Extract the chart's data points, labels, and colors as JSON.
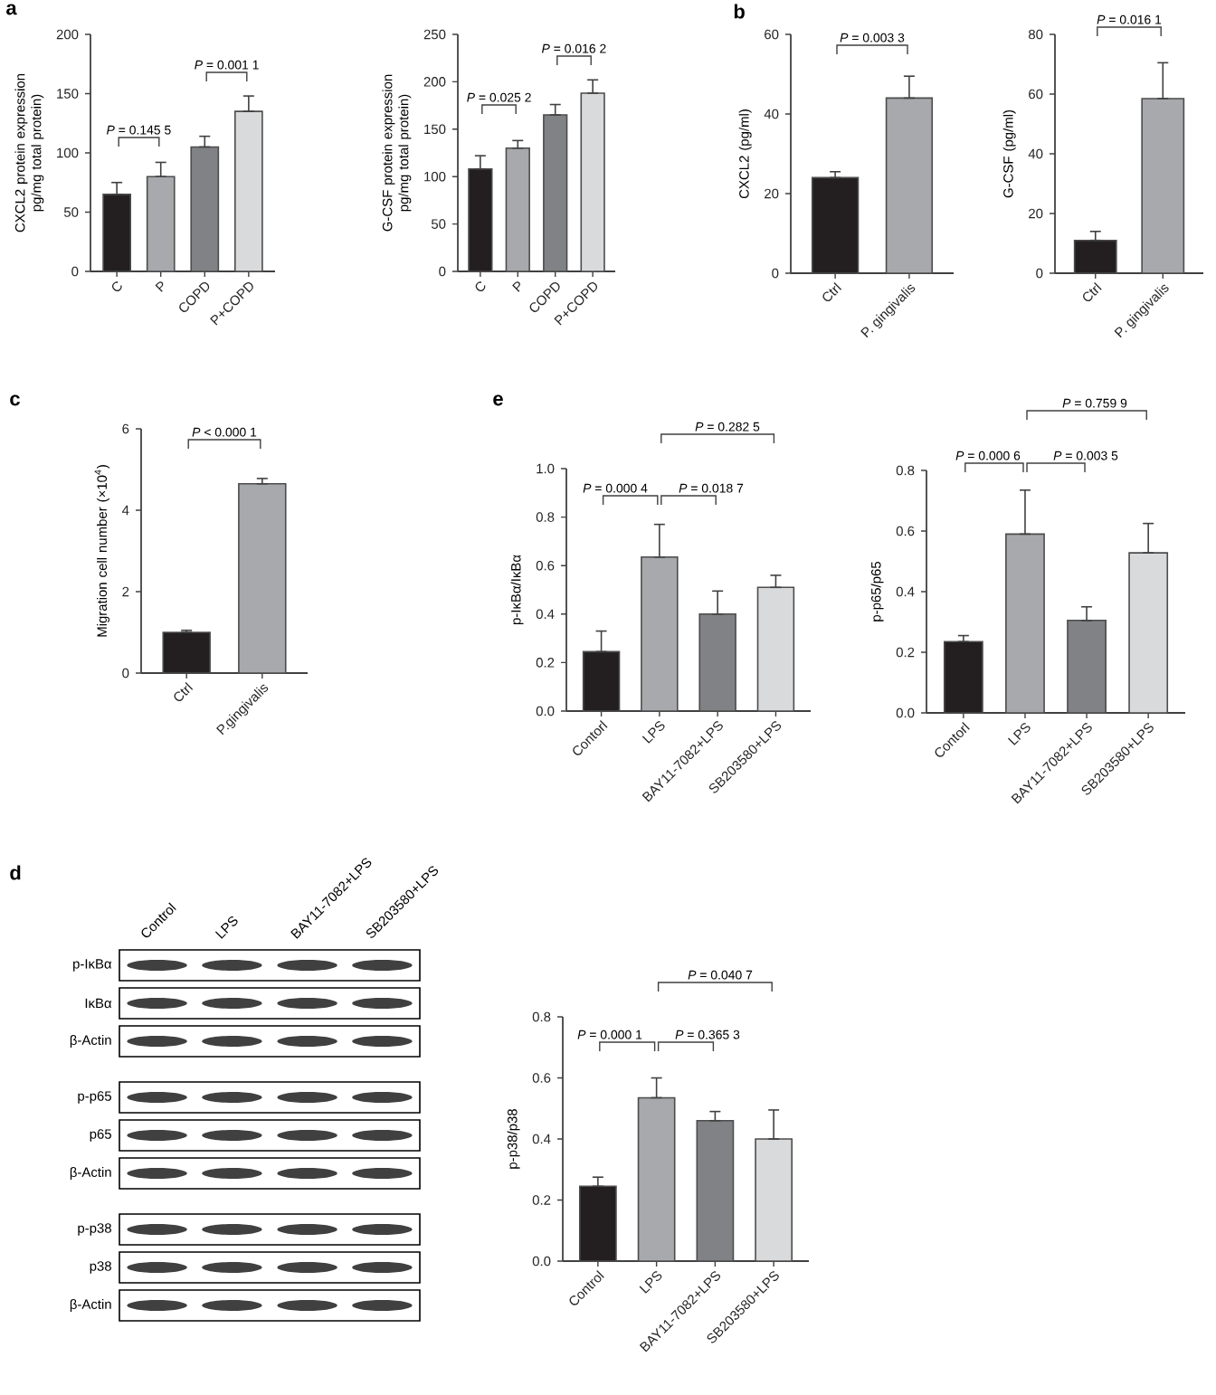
{
  "chart_data": [
    {
      "type": "bar",
      "title": "a",
      "categories": [
        "C",
        "P",
        "COPD",
        "P+COPD"
      ],
      "values": [
        65,
        80,
        105,
        135
      ],
      "errors": [
        [
          65,
          75
        ],
        [
          80,
          92
        ],
        [
          105,
          114
        ],
        [
          135,
          148
        ]
      ],
      "colors": [
        "#231f20",
        "#a7a9ac",
        "#808285",
        "#d9dadb"
      ],
      "ylabel": "CXCL2 protein expression pg/mg total protein)",
      "ylim": [
        0,
        200
      ],
      "yticks": [
        0,
        50,
        100,
        150,
        200
      ],
      "annotations": [
        "*P* = 0.145 5",
        "*P* = 0.001 1"
      ]
    },
    {
      "type": "bar",
      "categories": [
        "C",
        "P",
        "COPD",
        "P+COPD"
      ],
      "values": [
        108,
        130,
        165,
        188
      ],
      "errors": [
        [
          108,
          122
        ],
        [
          130,
          138
        ],
        [
          165,
          176
        ],
        [
          188,
          202
        ]
      ],
      "colors": [
        "#231f20",
        "#a7a9ac",
        "#808285",
        "#d9dadb"
      ],
      "ylabel": "G-CSF protein expression pg/mg total protein)",
      "ylim": [
        0,
        250
      ],
      "yticks": [
        0,
        50,
        100,
        150,
        200,
        250
      ],
      "annotations": [
        "*P* = 0.025 2",
        "*P* = 0.016 2"
      ]
    },
    {
      "type": "bar",
      "title": "b",
      "categories": [
        "Ctrl",
        "P. gingivalis"
      ],
      "values": [
        24,
        44
      ],
      "errors": [
        [
          24,
          25.5
        ],
        [
          44,
          49.5
        ]
      ],
      "colors": [
        "#231f20",
        "#a7a9ac"
      ],
      "ylabel": "CXCL2 (pg/ml)",
      "ylim": [
        0,
        60
      ],
      "yticks": [
        0,
        20,
        40,
        60
      ],
      "annotations": [
        "*P* = 0.003 3"
      ]
    },
    {
      "type": "bar",
      "categories": [
        "Ctrl",
        "P. gingivalis"
      ],
      "values": [
        11,
        58.5
      ],
      "errors": [
        [
          11,
          14
        ],
        [
          58.5,
          70.5
        ]
      ],
      "colors": [
        "#231f20",
        "#a7a9ac"
      ],
      "ylabel": "G-CSF (pg/ml)",
      "ylim": [
        0,
        80
      ],
      "yticks": [
        0,
        20,
        40,
        60,
        80
      ],
      "annotations": [
        "*P* = 0.016 1"
      ]
    },
    {
      "type": "bar",
      "title": "c",
      "categories": [
        "Ctrl",
        "P.gingivalis"
      ],
      "values": [
        1.0,
        4.65
      ],
      "errors": [
        [
          1.0,
          1.05
        ],
        [
          4.65,
          4.78
        ]
      ],
      "colors": [
        "#231f20",
        "#a7a9ac"
      ],
      "ylabel": "Migration cell number (×10$^{4}$)",
      "ylim": [
        0,
        6
      ],
      "yticks": [
        0,
        2,
        4,
        6
      ],
      "annotations": [
        "*P* < 0.000 1"
      ]
    },
    {
      "type": "bar",
      "title": "e",
      "categories": [
        "Contorl",
        "LPS",
        "BAY11-7082+LPS",
        "SB203580+LPS"
      ],
      "values": [
        0.245,
        0.635,
        0.4,
        0.51
      ],
      "errors": [
        [
          0.245,
          0.33
        ],
        [
          0.635,
          0.77
        ],
        [
          0.4,
          0.495
        ],
        [
          0.51,
          0.56
        ]
      ],
      "colors": [
        "#231f20",
        "#a7a9ac",
        "#808285",
        "#d9dadb"
      ],
      "ylabel": "p-IκBα/IκBα",
      "ylim": [
        0,
        1.0
      ],
      "yticks": [
        {
          "value": 0,
          "label": "0.0"
        },
        {
          "value": 0.2,
          "label": "0.2"
        },
        {
          "value": 0.4,
          "label": "0.4"
        },
        {
          "value": 0.6,
          "label": "0.6"
        },
        {
          "value": 0.8,
          "label": "0.8"
        },
        {
          "value": 1.0,
          "label": "1.0"
        }
      ],
      "annotations": [
        "*P* = 0.000 4",
        "*P* = 0.018 7",
        "*P* = 0.282 5"
      ]
    },
    {
      "type": "bar",
      "categories": [
        "Contorl",
        "LPS",
        "BAY11-7082+LPS",
        "SB203580+LPS"
      ],
      "values": [
        0.235,
        0.59,
        0.305,
        0.528
      ],
      "errors": [
        [
          0.235,
          0.255
        ],
        [
          0.59,
          0.735
        ],
        [
          0.305,
          0.35
        ],
        [
          0.528,
          0.625
        ]
      ],
      "colors": [
        "#231f20",
        "#a7a9ac",
        "#808285",
        "#d9dadb"
      ],
      "ylabel": "p-p65/p65",
      "ylim": [
        0,
        0.8
      ],
      "yticks": [
        {
          "value": 0,
          "label": "0.0"
        },
        {
          "value": 0.2,
          "label": "0.2"
        },
        {
          "value": 0.4,
          "label": "0.4"
        },
        {
          "value": 0.6,
          "label": "0.6"
        },
        {
          "value": 0.8,
          "label": "0.8"
        }
      ],
      "annotations": [
        "*P* = 0.000 6",
        "*P* = 0.003 5",
        "*P* = 0.759 9"
      ]
    },
    {
      "type": "other",
      "title": "d",
      "categories": [
        "Control",
        "LPS",
        "BAY11-7082+LPS",
        "SB203580+LPS"
      ],
      "y_categories": [
        "p-IκBα",
        "IκBα",
        "β-Actin",
        "p-p65",
        "p65",
        "β-Actin",
        "p-p38",
        "p38",
        "β-Actin"
      ]
    },
    {
      "type": "bar",
      "categories": [
        "Control",
        "LPS",
        "BAY11-7082+LPS",
        "SB203580+LPS"
      ],
      "values": [
        0.245,
        0.535,
        0.46,
        0.4
      ],
      "errors": [
        [
          0.245,
          0.275
        ],
        [
          0.535,
          0.6
        ],
        [
          0.46,
          0.49
        ],
        [
          0.4,
          0.495
        ]
      ],
      "colors": [
        "#231f20",
        "#a7a9ac",
        "#808285",
        "#d9dadb"
      ],
      "ylabel": "p-p38/p38",
      "ylim": [
        0,
        0.8
      ],
      "yticks": [
        {
          "value": 0,
          "label": "0.0"
        },
        {
          "value": 0.2,
          "label": "0.2"
        },
        {
          "value": 0.4,
          "label": "0.4"
        },
        {
          "value": 0.6,
          "label": "0.6"
        },
        {
          "value": 0.8,
          "label": "0.8"
        }
      ],
      "annotations": [
        "*P* = 0.000 1",
        "*P* = 0.365 3",
        "*P* = 0.040 7"
      ]
    }
  ]
}
